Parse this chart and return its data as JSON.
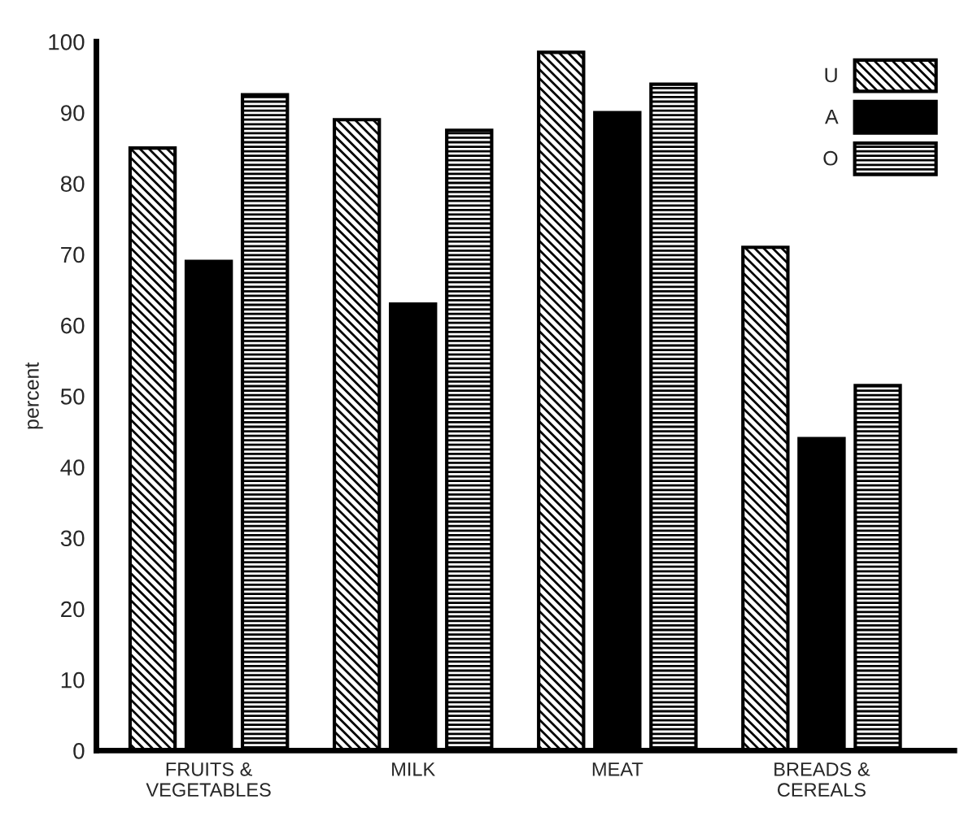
{
  "chart_data": {
    "type": "bar",
    "ylabel": "percent",
    "categories": [
      "FRUITS &\nVEGETABLES",
      "MILK",
      "MEAT",
      "BREADS &\nCEREALS"
    ],
    "series": [
      {
        "name": "U",
        "color": "#000000",
        "values": [
          85,
          89,
          98.5,
          71
        ]
      },
      {
        "name": "A",
        "color": "#000000",
        "values": [
          69,
          63,
          90,
          44
        ]
      },
      {
        "name": "O",
        "color": "#000000",
        "values": [
          92.5,
          87.5,
          94,
          51.5
        ]
      }
    ],
    "ylim": [
      0,
      100
    ],
    "yticks": [
      0,
      10,
      20,
      30,
      40,
      50,
      60,
      70,
      80,
      90,
      100
    ],
    "grid": false,
    "legend": "top right"
  }
}
